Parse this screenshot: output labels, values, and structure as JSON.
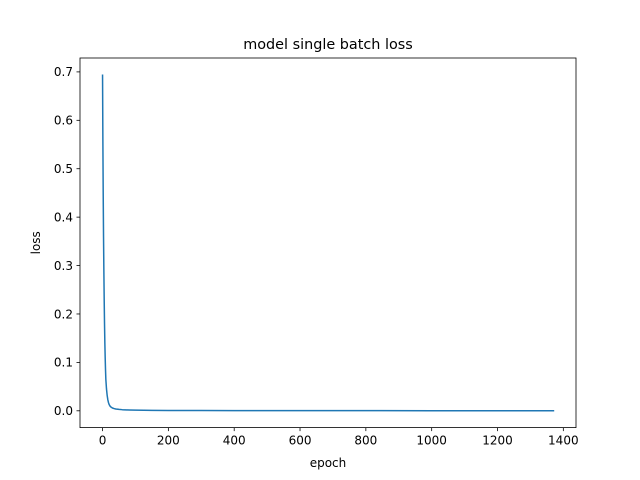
{
  "chart_data": {
    "type": "line",
    "title": "model single batch loss",
    "xlabel": "epoch",
    "ylabel": "loss",
    "xlim": [
      -68.5,
      1438.5
    ],
    "ylim": [
      -0.0347,
      0.7287
    ],
    "xticks": [
      0,
      200,
      400,
      600,
      800,
      1000,
      1200,
      1400
    ],
    "yticks": [
      0.0,
      0.1,
      0.2,
      0.3,
      0.4,
      0.5,
      0.6,
      0.7
    ],
    "ytick_labels": [
      "0.0",
      "0.1",
      "0.2",
      "0.3",
      "0.4",
      "0.5",
      "0.6",
      "0.7"
    ],
    "grid": false,
    "legend": "none",
    "series": [
      {
        "color": "#1f77b4",
        "x": [
          0,
          1,
          2,
          3,
          4,
          5,
          6,
          7,
          8,
          9,
          10,
          12,
          14,
          16,
          18,
          20,
          23,
          26,
          30,
          35,
          40,
          50,
          60,
          80,
          100,
          150,
          200,
          300,
          400,
          600,
          800,
          1000,
          1200,
          1370
        ],
        "y": [
          0.693,
          0.56,
          0.45,
          0.36,
          0.29,
          0.23,
          0.18,
          0.14,
          0.11,
          0.085,
          0.065,
          0.045,
          0.032,
          0.023,
          0.017,
          0.013,
          0.0095,
          0.0075,
          0.0058,
          0.0046,
          0.0038,
          0.0029,
          0.0023,
          0.0017,
          0.0013,
          0.0009,
          0.0007,
          0.0005,
          0.0004,
          0.0003,
          0.00024,
          0.0002,
          0.00017,
          0.00015
        ]
      }
    ]
  }
}
